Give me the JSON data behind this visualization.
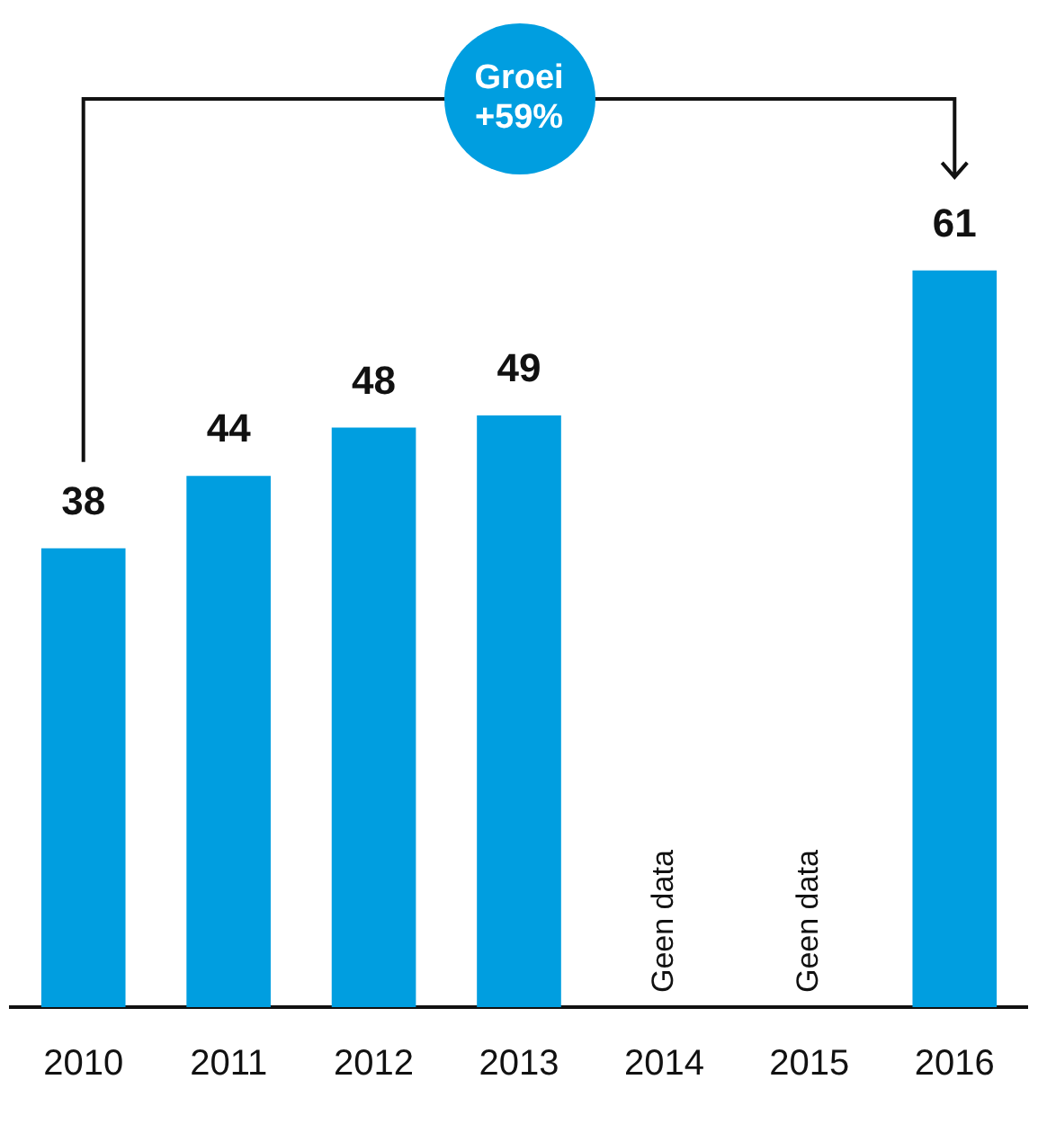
{
  "chart_data": {
    "type": "bar",
    "categories": [
      "2010",
      "2011",
      "2012",
      "2013",
      "2014",
      "2015",
      "2016"
    ],
    "values": [
      38,
      44,
      48,
      49,
      null,
      null,
      61
    ],
    "color": "#009ee0",
    "data_labels": true,
    "grid": false,
    "legend": false,
    "annotations": [
      "Geen data",
      "Geen data",
      "Groei +59%"
    ]
  }
}
